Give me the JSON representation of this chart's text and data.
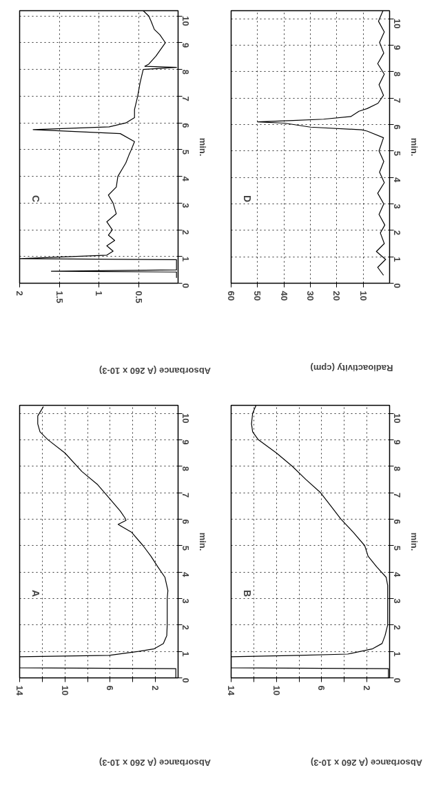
{
  "chart_data": [
    {
      "type": "line",
      "title": "C",
      "ylabel": "min.",
      "xlabel": "Absorbance (A 260 x 10-3)",
      "ylim": [
        0,
        10.2
      ],
      "xlim": [
        2,
        0
      ],
      "yticks": [
        0,
        1,
        2,
        3,
        4,
        5,
        6,
        7,
        8,
        9,
        10
      ],
      "xticks": [
        0.5,
        1,
        1.5,
        2
      ],
      "grid": true,
      "line_style": "solid",
      "color": "#000000",
      "values": [
        0.2,
        0.42,
        0.45,
        0.5,
        0.88,
        0.92,
        1.05,
        1.2,
        1.4,
        1.6,
        1.8,
        2.0,
        2.3,
        2.6,
        3.0,
        3.3,
        3.6,
        4.0,
        4.3,
        4.5,
        4.8,
        5.0,
        5.3,
        5.6,
        5.75,
        5.85,
        6.0,
        6.2,
        6.5,
        7.0,
        7.5,
        8.0,
        8.08,
        8.12,
        8.2,
        8.5,
        9.0,
        9.3,
        9.5,
        9.8,
        10.0,
        10.2
      ],
      "x": [
        0.02,
        0.02,
        1.6,
        0.02,
        0.02,
        2.0,
        0.9,
        0.82,
        0.9,
        0.8,
        0.88,
        0.83,
        0.9,
        0.78,
        0.82,
        0.88,
        0.78,
        0.76,
        0.7,
        0.66,
        0.62,
        0.59,
        0.55,
        0.73,
        1.83,
        0.87,
        0.66,
        0.55,
        0.55,
        0.51,
        0.48,
        0.44,
        0.02,
        0.42,
        0.37,
        0.28,
        0.16,
        0.23,
        0.3,
        0.34,
        0.37,
        0.44
      ]
    },
    {
      "type": "line",
      "title": "D",
      "ylabel": "min.",
      "xlabel": "Radioactivity (cpm)",
      "ylim": [
        0,
        10.3
      ],
      "xlim": [
        60,
        0
      ],
      "yticks": [
        0,
        1,
        2,
        3,
        4,
        5,
        6,
        7,
        8,
        9,
        10
      ],
      "xticks": [
        10,
        20,
        30,
        40,
        50,
        60
      ],
      "grid": true,
      "line_style": "solid",
      "color": "#000000",
      "values": [
        0.3,
        0.6,
        0.9,
        1.2,
        1.5,
        1.9,
        2.2,
        2.6,
        3.0,
        3.4,
        3.8,
        4.2,
        4.6,
        5.0,
        5.5,
        5.75,
        5.8,
        5.9,
        6.05,
        6.1,
        6.15,
        6.2,
        6.3,
        6.5,
        6.6,
        6.8,
        7.1,
        7.5,
        7.9,
        8.3,
        8.7,
        9.1,
        9.5,
        9.9,
        10.3
      ],
      "x": [
        2.3,
        4.5,
        1.5,
        5.0,
        2.0,
        3.5,
        1.8,
        4.0,
        2.2,
        4.5,
        2.0,
        3.8,
        2.2,
        4.0,
        2.3,
        8.5,
        10.6,
        30,
        39.7,
        50,
        36.5,
        25,
        14.7,
        11.6,
        8.5,
        4.4,
        2.3,
        4.0,
        2.0,
        4.5,
        2.2,
        3.8,
        2.0,
        4.2,
        2.5
      ]
    },
    {
      "type": "line",
      "title": "A",
      "ylabel": "min.",
      "xlabel": "Absorbance (A 260 x 10-3)",
      "ylim": [
        0,
        10.3
      ],
      "xlim": [
        14,
        0
      ],
      "yticks": [
        0,
        1,
        2,
        3,
        4,
        5,
        6,
        7,
        8,
        9,
        10
      ],
      "xticks": [
        2,
        {
          "value": 4,
          "label": null
        },
        6,
        {
          "value": 8,
          "label": null
        },
        10,
        {
          "value": 12,
          "label": null
        },
        14
      ],
      "grid": true,
      "line_style": "solid",
      "color": "#000000",
      "values": [
        0,
        0.35,
        0.38,
        0.8,
        0.85,
        1.0,
        1.1,
        1.3,
        1.6,
        2.0,
        3.0,
        3.3,
        3.8,
        4.2,
        4.6,
        5.0,
        5.5,
        5.8,
        5.95,
        6.05,
        6.3,
        6.8,
        7.3,
        7.8,
        8.5,
        9.0,
        9.3,
        9.6,
        9.9,
        10.25
      ],
      "x": [
        0.2,
        0.2,
        14,
        14,
        6.1,
        3.5,
        2.1,
        1.3,
        1.0,
        0.96,
        0.96,
        0.9,
        1.16,
        1.8,
        2.4,
        3.1,
        4.1,
        5.3,
        4.6,
        4.7,
        5.1,
        6.1,
        7.1,
        8.5,
        10.0,
        11.5,
        12.2,
        12.4,
        12.4,
        11.9
      ]
    },
    {
      "type": "line",
      "title": "B",
      "ylabel": "min.",
      "xlabel": "Absorbance (A 260 x 10-3)",
      "ylim": [
        0,
        10.3
      ],
      "xlim": [
        14,
        0
      ],
      "yticks": [
        0,
        1,
        2,
        3,
        4,
        5,
        6,
        7,
        8,
        9,
        10
      ],
      "xticks": [
        2,
        {
          "value": 4,
          "label": null
        },
        6,
        {
          "value": 8,
          "label": null
        },
        10,
        {
          "value": 12,
          "label": null
        },
        14
      ],
      "grid": true,
      "line_style": "solid",
      "color": "#000000",
      "values": [
        0,
        0.35,
        0.38,
        0.8,
        0.85,
        0.9,
        1.1,
        1.3,
        1.6,
        2.0,
        3.5,
        3.8,
        4.2,
        4.6,
        5.0,
        5.5,
        6.0,
        6.5,
        7.0,
        7.5,
        8.0,
        8.5,
        9.0,
        9.3,
        9.6,
        10.0,
        10.3
      ],
      "x": [
        0.1,
        0.1,
        14,
        14,
        8.0,
        3.7,
        1.5,
        0.66,
        0.4,
        0.17,
        0.17,
        0.3,
        1.15,
        1.9,
        2.2,
        3.2,
        4.3,
        5.2,
        6.1,
        7.4,
        8.6,
        10.0,
        11.6,
        12.1,
        12.2,
        12.1,
        11.8
      ]
    }
  ]
}
